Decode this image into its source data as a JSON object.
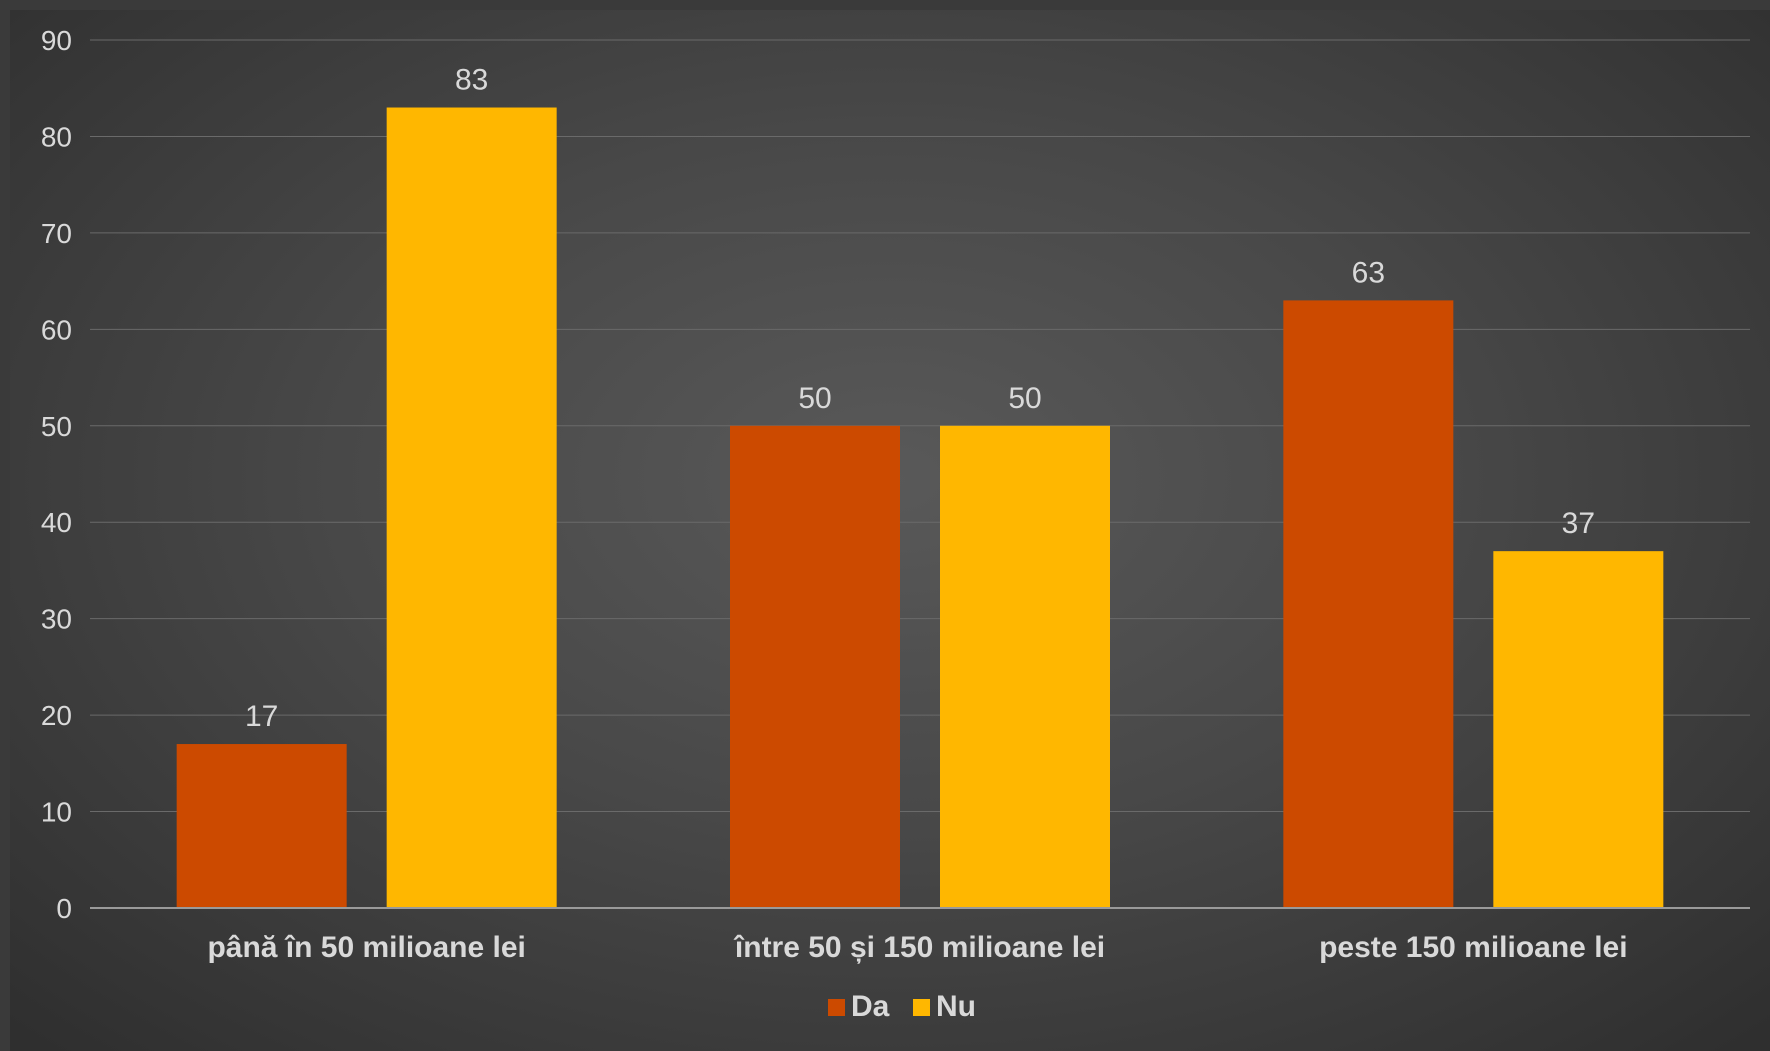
{
  "chart_data": {
    "type": "bar",
    "categories": [
      "până în 50 milioane lei",
      "între 50 și 150 milioane lei",
      "peste 150 milioane lei"
    ],
    "series": [
      {
        "name": "Da",
        "values": [
          17,
          50,
          63
        ],
        "color": "#CC4A00"
      },
      {
        "name": "Nu",
        "values": [
          83,
          50,
          37
        ],
        "color": "#FFB700"
      }
    ],
    "ylim": [
      0,
      90
    ],
    "yticks": [
      0,
      10,
      20,
      30,
      40,
      50,
      60,
      70,
      80,
      90
    ],
    "grid": true,
    "legend": "bottom"
  }
}
